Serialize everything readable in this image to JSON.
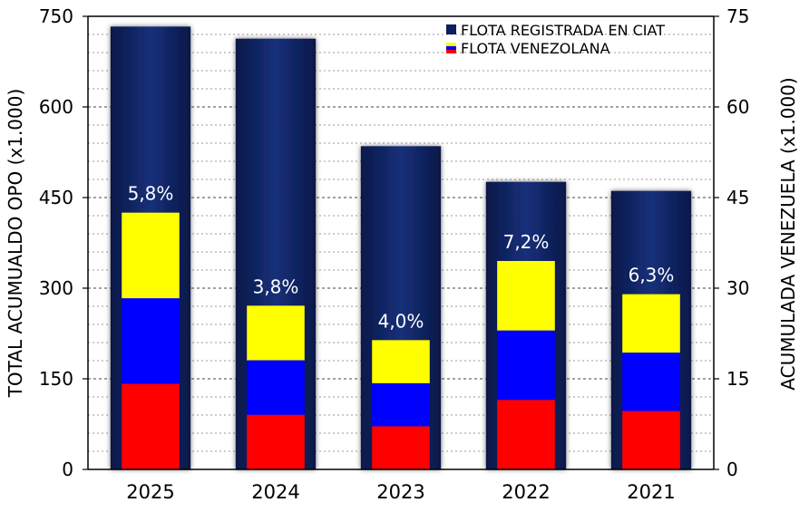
{
  "chart_data": {
    "type": "bar",
    "categories": [
      "2025",
      "2024",
      "2023",
      "2022",
      "2021"
    ],
    "series": [
      {
        "name": "FLOTA REGISTRADA EN CIAT",
        "axis": "left",
        "values": [
          733,
          713,
          535,
          476,
          461
        ]
      },
      {
        "name": "FLOTA VENEZOLANA",
        "axis": "right",
        "values": [
          42.5,
          27.1,
          21.4,
          34.5,
          29.0
        ],
        "pct_labels": [
          "5,8%",
          "3,8%",
          "4,0%",
          "7,2%",
          "6,3%"
        ]
      }
    ],
    "ylabel_left": "TOTAL ACUMUALDO OPO (x1.000)",
    "ylabel_right": "ACUMULADA VENEZUELA (x1.000)",
    "ylim_left": [
      0,
      750
    ],
    "ylim_right": [
      0,
      75
    ],
    "yticks_left": [
      "0",
      "150",
      "300",
      "450",
      "600",
      "750"
    ],
    "yticks_right": [
      "0",
      "15",
      "30",
      "45",
      "60",
      "75"
    ],
    "legend": [
      "FLOTA REGISTRADA EN CIAT",
      "FLOTA VENEZOLANA"
    ],
    "legend_position": "top-right",
    "colors": {
      "ciat": "#0d1f5e",
      "ciat_light": "#2b4a9a",
      "ve_yellow": "#ffff00",
      "ve_blue": "#0000ff",
      "ve_red": "#ff0000",
      "grid": "#555555"
    }
  }
}
